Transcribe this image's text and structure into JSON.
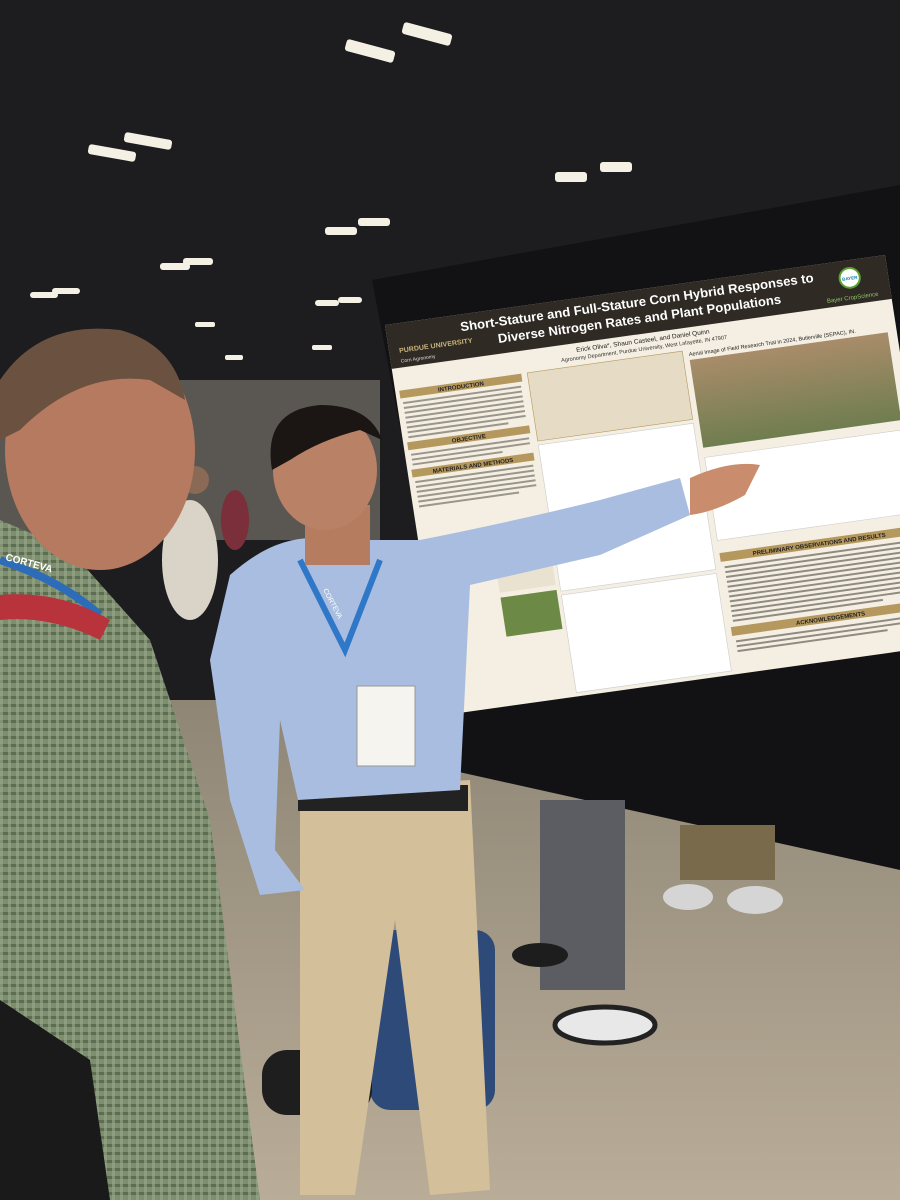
{
  "poster": {
    "title_lines": [
      "Short-Stature and Full-Stature Corn Hybrid Responses to",
      "Diverse Nitrogen Rates and Plant Populations"
    ],
    "authors": "Erick Oliva*, Shaun Casteel, and Daniel Quinn",
    "affiliation": "Agronomy Department, Purdue University, West Lafayette, IN 47907",
    "logo_left": "PURDUE UNIVERSITY",
    "logo_left_sub": "Corn Agronomy",
    "logo_right": "BAYER",
    "logo_right_sub": "Bayer CropScience",
    "sections": [
      "INTRODUCTION",
      "OBJECTIVE",
      "MATERIALS AND METHODS",
      "PRELIMINARY OBSERVATIONS AND RESULTS",
      "ACKNOWLEDGEMENTS"
    ],
    "image_caption": "Aerial Image of Field Research Trial in 2024, Butlerville (SEPAC), IN."
  },
  "lanyard": "CORTEVA"
}
